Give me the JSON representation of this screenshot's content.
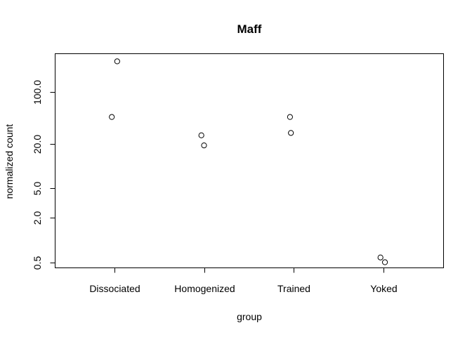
{
  "chart_data": {
    "type": "scatter",
    "title": "Maff",
    "xlabel": "group",
    "ylabel": "normalized count",
    "categories": [
      "Dissociated",
      "Homogenized",
      "Trained",
      "Yoked"
    ],
    "y_scale": "log",
    "y_ticks": [
      0.5,
      2.0,
      5.0,
      20.0,
      100.0
    ],
    "y_tick_labels": [
      "0.5",
      "2.0",
      "5.0",
      "20.0",
      "100.0"
    ],
    "ylim": [
      0.42,
      330
    ],
    "grid": false,
    "points": [
      {
        "category": "Dissociated",
        "jitter": 0.03,
        "y": 260
      },
      {
        "category": "Dissociated",
        "jitter": -0.03,
        "y": 46
      },
      {
        "category": "Homogenized",
        "jitter": -0.03,
        "y": 26
      },
      {
        "category": "Homogenized",
        "jitter": 0.0,
        "y": 19
      },
      {
        "category": "Trained",
        "jitter": -0.03,
        "y": 28
      },
      {
        "category": "Trained",
        "jitter": -0.04,
        "y": 46
      },
      {
        "category": "Yoked",
        "jitter": -0.03,
        "y": 0.58
      },
      {
        "category": "Yoked",
        "jitter": 0.02,
        "y": 0.5
      }
    ]
  }
}
